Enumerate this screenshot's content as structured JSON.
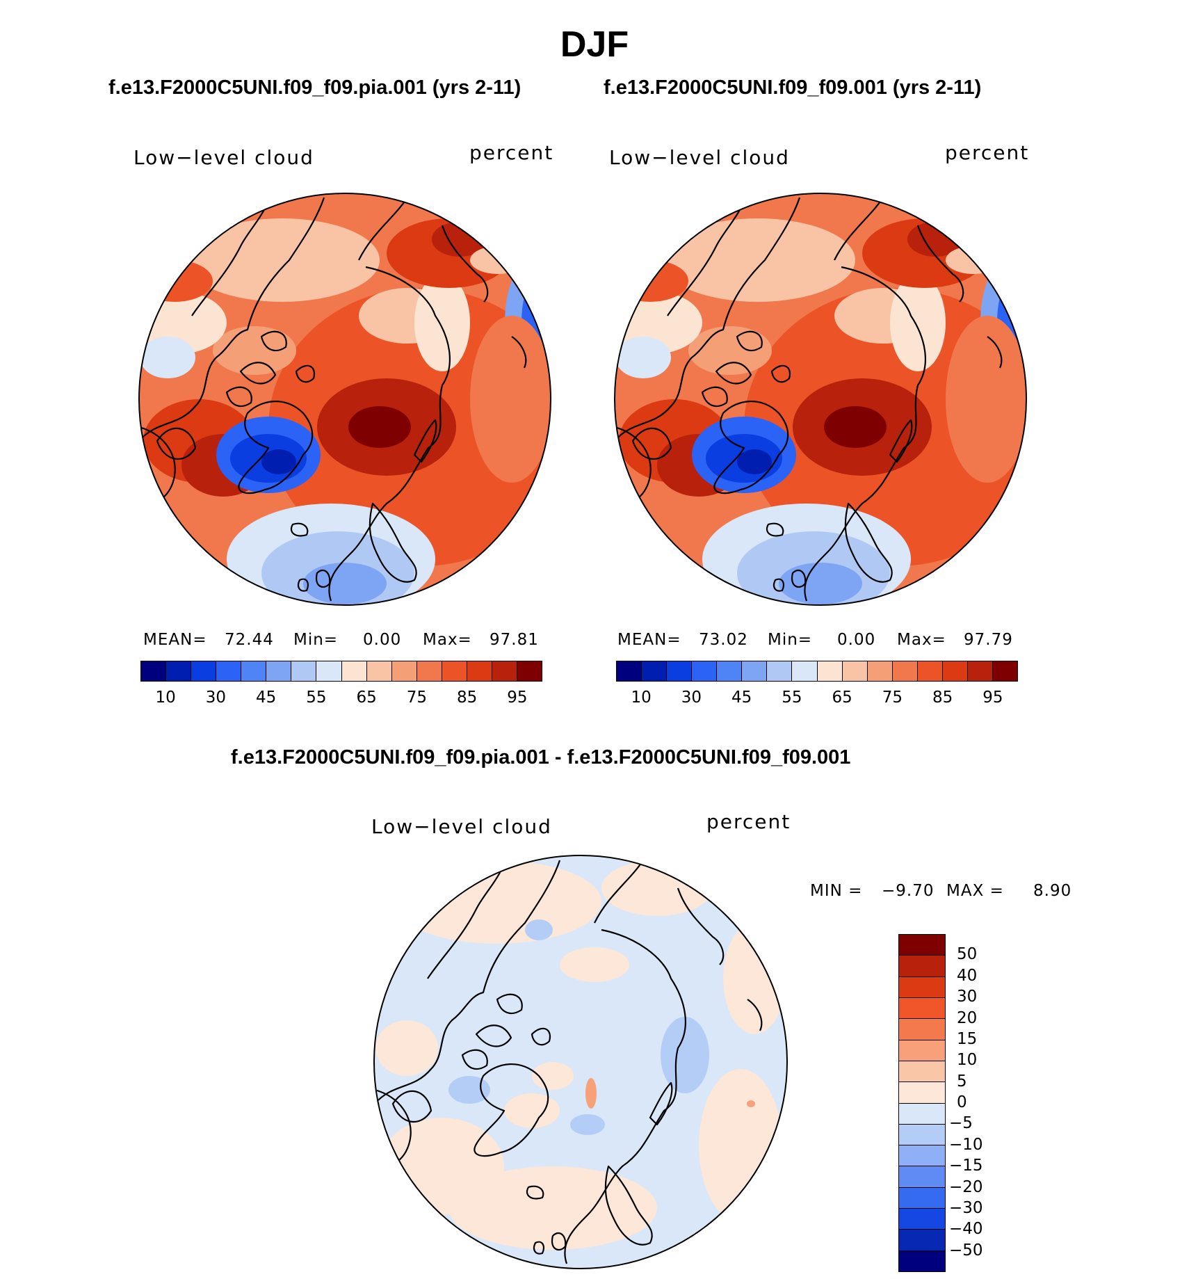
{
  "title": "DJF",
  "panels": [
    {
      "case": "f.e13.F2000C5UNI.f09_f09.pia.001 (yrs 2-11)",
      "variable": "Low−level cloud",
      "units": "percent",
      "mean_label": "MEAN=",
      "mean": "72.44",
      "min_label": "Min=",
      "min": "0.00",
      "max_label": "Max=",
      "max": "97.81"
    },
    {
      "case": "f.e13.F2000C5UNI.f09_f09.001 (yrs 2-11)",
      "variable": "Low−level cloud",
      "units": "percent",
      "mean_label": "MEAN=",
      "mean": "73.02",
      "min_label": "Min=",
      "min": "0.00",
      "max_label": "Max=",
      "max": "97.79"
    }
  ],
  "abs_colorbar": {
    "colors": [
      "#00007f",
      "#001fb0",
      "#0b3ee0",
      "#2b63f7",
      "#4f84f7",
      "#7ea5f3",
      "#b0c9f4",
      "#d9e7f9",
      "#fbe4d2",
      "#f9c4a5",
      "#f59f77",
      "#f1784d",
      "#ec5427",
      "#db3a13",
      "#b8210b",
      "#7f0000"
    ],
    "tick_labels": [
      "10",
      "30",
      "45",
      "55",
      "65",
      "75",
      "85",
      "95"
    ]
  },
  "diff": {
    "case": "f.e13.F2000C5UNI.f09_f09.pia.001 - f.e13.F2000C5UNI.f09_f09.001",
    "variable": "Low−level cloud",
    "units": "percent",
    "min_label": "MIN =",
    "min": "−9.70",
    "max_label": "MAX =",
    "max": "8.90"
  },
  "diff_colorbar": {
    "colors": [
      "#7f0000",
      "#b8210b",
      "#db3a13",
      "#f1552a",
      "#f4794d",
      "#f7a07a",
      "#f9c6a8",
      "#fce7d8",
      "#d9e7f9",
      "#b4cdf6",
      "#8eb0f6",
      "#5f8cf4",
      "#346bf1",
      "#1548e2",
      "#0728b2",
      "#00007f"
    ],
    "tick_labels": [
      "50",
      "40",
      "30",
      "20",
      "15",
      "10",
      "5",
      "0",
      "−5",
      "−10",
      "−15",
      "−20",
      "−30",
      "−40",
      "−50"
    ]
  },
  "colors": {
    "coast": "#000000"
  }
}
